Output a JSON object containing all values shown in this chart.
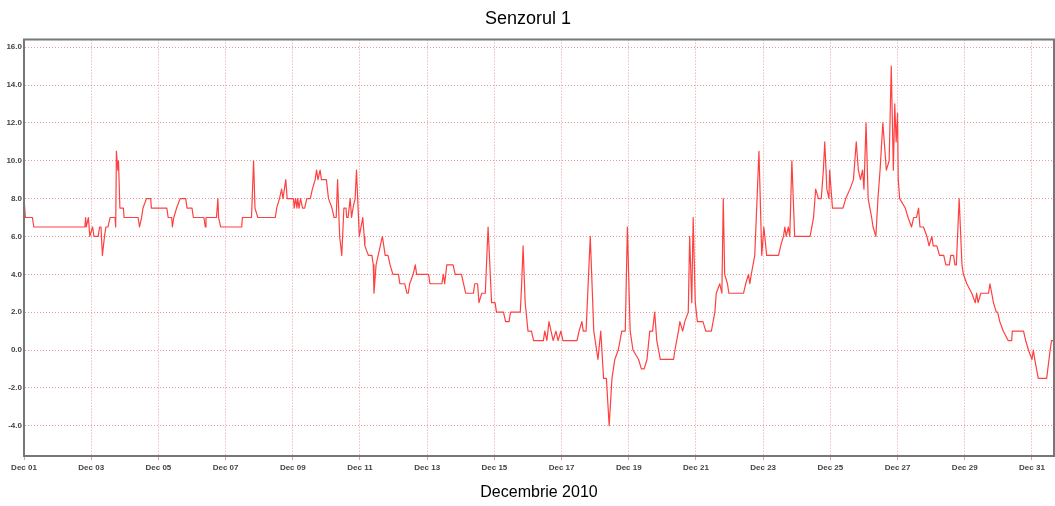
{
  "chart_data": {
    "type": "line",
    "title": "Senzorul 1",
    "xlabel": "Decembrie 2010",
    "xlim": [
      "2010-12-01",
      "2010-12-31T15:45"
    ],
    "xticks": [
      {
        "value": "2010-12-01",
        "label": "Dec 01"
      },
      {
        "value": "2010-12-03",
        "label": "Dec 03"
      },
      {
        "value": "2010-12-05",
        "label": "Dec 05"
      },
      {
        "value": "2010-12-07",
        "label": "Dec 07"
      },
      {
        "value": "2010-12-09",
        "label": "Dec 09"
      },
      {
        "value": "2010-12-11",
        "label": "Dec 11"
      },
      {
        "value": "2010-12-13",
        "label": "Dec 13"
      },
      {
        "value": "2010-12-15",
        "label": "Dec 15"
      },
      {
        "value": "2010-12-17",
        "label": "Dec 17"
      },
      {
        "value": "2010-12-19",
        "label": "Dec 19"
      },
      {
        "value": "2010-12-21",
        "label": "Dec 21"
      },
      {
        "value": "2010-12-23",
        "label": "Dec 23"
      },
      {
        "value": "2010-12-25",
        "label": "Dec 25"
      },
      {
        "value": "2010-12-27",
        "label": "Dec 27"
      },
      {
        "value": "2010-12-29",
        "label": "Dec 29"
      },
      {
        "value": "2010-12-31",
        "label": "Dec 31"
      }
    ],
    "ylim": [
      -5.6,
      16.4
    ],
    "yticks": [
      {
        "value": -4,
        "label": "-4.0"
      },
      {
        "value": -2,
        "label": "-2.0"
      },
      {
        "value": 0,
        "label": "0.0"
      },
      {
        "value": 2,
        "label": "2.0"
      },
      {
        "value": 4,
        "label": "4.0"
      },
      {
        "value": 6,
        "label": "6.0"
      },
      {
        "value": 8,
        "label": "8.0"
      },
      {
        "value": 10,
        "label": "10.0"
      },
      {
        "value": 12,
        "label": "12.0"
      },
      {
        "value": 14,
        "label": "14.0"
      },
      {
        "value": 16,
        "label": "16.0"
      }
    ],
    "grid": true,
    "legend": false,
    "marker": "none",
    "line_style": "solid",
    "series": [
      {
        "color": "#ff4040",
        "x": [
          "2010-12-01T00:00",
          "2010-12-01T01:00",
          "2010-12-01T06:00",
          "2010-12-01T07:00",
          "2010-12-02T19:30",
          "2010-12-02T20:00",
          "2010-12-02T20:30",
          "2010-12-02T22:00",
          "2010-12-02T23:00",
          "2010-12-03T01:00",
          "2010-12-03T02:00",
          "2010-12-03T05:00",
          "2010-12-03T06:00",
          "2010-12-03T07:00",
          "2010-12-03T08:00",
          "2010-12-03T09:30",
          "2010-12-03T10:30",
          "2010-12-03T12:00",
          "2010-12-03T13:30",
          "2010-12-03T17:00",
          "2010-12-03T17:30",
          "2010-12-03T18:00",
          "2010-12-03T19:00",
          "2010-12-03T19:30",
          "2010-12-03T20:30",
          "2010-12-03T23:00",
          "2010-12-03T23:30",
          "2010-12-04T09:30",
          "2010-12-04T10:30",
          "2010-12-04T12:00",
          "2010-12-04T13:00",
          "2010-12-04T15:30",
          "2010-12-04T18:30",
          "2010-12-04T19:00",
          "2010-12-05T06:00",
          "2010-12-05T07:00",
          "2010-12-05T09:30",
          "2010-12-05T10:00",
          "2010-12-05T11:00",
          "2010-12-05T13:00",
          "2010-12-05T15:30",
          "2010-12-05T19:30",
          "2010-12-05T20:30",
          "2010-12-06T00:00",
          "2010-12-06T01:00",
          "2010-12-06T08:30",
          "2010-12-06T09:30",
          "2010-12-06T10:00",
          "2010-12-06T17:30",
          "2010-12-06T18:30",
          "2010-12-06T19:00",
          "2010-12-06T20:30",
          "2010-12-07T11:30",
          "2010-12-07T12:00",
          "2010-12-07T18:30",
          "2010-12-07T20:00",
          "2010-12-07T21:00",
          "2010-12-07T23:00",
          "2010-12-08T11:30",
          "2010-12-08T12:30",
          "2010-12-08T14:30",
          "2010-12-08T16:00",
          "2010-12-08T17:00",
          "2010-12-08T19:00",
          "2010-12-08T20:00",
          "2010-12-09T00:30",
          "2010-12-09T01:00",
          "2010-12-09T02:00",
          "2010-12-09T03:00",
          "2010-12-09T03:30",
          "2010-12-09T04:30",
          "2010-12-09T05:30",
          "2010-12-09T07:00",
          "2010-12-09T08:30",
          "2010-12-09T10:00",
          "2010-12-09T12:30",
          "2010-12-09T14:00",
          "2010-12-09T16:00",
          "2010-12-09T17:00",
          "2010-12-09T18:00",
          "2010-12-09T19:30",
          "2010-12-09T20:30",
          "2010-12-10T00:00",
          "2010-12-10T01:30",
          "2010-12-10T04:00",
          "2010-12-10T05:30",
          "2010-12-10T07:00",
          "2010-12-10T08:00",
          "2010-12-10T09:30",
          "2010-12-10T11:00",
          "2010-12-10T12:30",
          "2010-12-10T14:00",
          "2010-12-10T14:30",
          "2010-12-10T15:30",
          "2010-12-10T17:00",
          "2010-12-10T18:00",
          "2010-12-10T19:00",
          "2010-12-10T20:30",
          "2010-12-10T21:30",
          "2010-12-10T23:30",
          "2010-12-11T02:00",
          "2010-12-11T03:00",
          "2010-12-11T03:30",
          "2010-12-11T06:00",
          "2010-12-11T08:30",
          "2010-12-11T09:30",
          "2010-12-11T10:00",
          "2010-12-11T11:30",
          "2010-12-11T13:00",
          "2010-12-11T14:30",
          "2010-12-11T16:00",
          "2010-12-11T18:00",
          "2010-12-11T20:00",
          "2010-12-11T21:30",
          "2010-12-11T23:30",
          "2010-12-12T03:30",
          "2010-12-12T04:30",
          "2010-12-12T08:00",
          "2010-12-12T09:30",
          "2010-12-12T10:30",
          "2010-12-12T11:30",
          "2010-12-12T14:00",
          "2010-12-12T15:30",
          "2010-12-12T16:30",
          "2010-12-13T01:00",
          "2010-12-13T02:00",
          "2010-12-13T10:30",
          "2010-12-13T11:30",
          "2010-12-13T12:30",
          "2010-12-13T14:00",
          "2010-12-13T18:30",
          "2010-12-13T20:00",
          "2010-12-14T00:30",
          "2010-12-14T02:00",
          "2010-12-14T03:30",
          "2010-12-14T09:00",
          "2010-12-14T10:00",
          "2010-12-14T12:00",
          "2010-12-14T13:00",
          "2010-12-14T15:00",
          "2010-12-14T17:30",
          "2010-12-14T19:30",
          "2010-12-14T22:00",
          "2010-12-15T00:30",
          "2010-12-15T01:30",
          "2010-12-15T06:30",
          "2010-12-15T08:00",
          "2010-12-15T10:30",
          "2010-12-15T11:30",
          "2010-12-15T18:30",
          "2010-12-15T19:30",
          "2010-12-15T20:30",
          "2010-12-15T22:00",
          "2010-12-16T00:00",
          "2010-12-16T02:30",
          "2010-12-16T04:00",
          "2010-12-16T11:00",
          "2010-12-16T12:00",
          "2010-12-16T13:30",
          "2010-12-16T15:00",
          "2010-12-16T18:00",
          "2010-12-16T20:00",
          "2010-12-16T21:30",
          "2010-12-16T23:30",
          "2010-12-17T01:00",
          "2010-12-17T11:00",
          "2010-12-17T12:30",
          "2010-12-17T14:30",
          "2010-12-17T15:30",
          "2010-12-17T17:30",
          "2010-12-17T20:30",
          "2010-12-17T23:00",
          "2010-12-18T01:00",
          "2010-12-18T02:00",
          "2010-12-18T04:00",
          "2010-12-18T06:00",
          "2010-12-18T08:00",
          "2010-12-18T10:00",
          "2010-12-18T12:00",
          "2010-12-18T14:00",
          "2010-12-18T16:30",
          "2010-12-18T19:00",
          "2010-12-18T21:30",
          "2010-12-18T23:00",
          "2010-12-19T01:00",
          "2010-12-19T03:00",
          "2010-12-19T07:00",
          "2010-12-19T09:00",
          "2010-12-19T11:00",
          "2010-12-19T13:00",
          "2010-12-19T15:00",
          "2010-12-19T17:00",
          "2010-12-19T18:30",
          "2010-12-19T20:00",
          "2010-12-19T22:30",
          "2010-12-20T08:00",
          "2010-12-20T09:00",
          "2010-12-20T11:30",
          "2010-12-20T12:30",
          "2010-12-20T14:30",
          "2010-12-20T16:00",
          "2010-12-20T18:30",
          "2010-12-20T19:30",
          "2010-12-20T21:00",
          "2010-12-20T22:00",
          "2010-12-20T23:30",
          "2010-12-21T01:00",
          "2010-12-21T05:00",
          "2010-12-21T07:00",
          "2010-12-21T11:00",
          "2010-12-21T13:30",
          "2010-12-21T14:30",
          "2010-12-21T17:00",
          "2010-12-21T18:30",
          "2010-12-21T19:30",
          "2010-12-21T20:30",
          "2010-12-21T22:30",
          "2010-12-21T23:30",
          "2010-12-22T10:00",
          "2010-12-22T11:30",
          "2010-12-22T13:30",
          "2010-12-22T14:30",
          "2010-12-22T15:30",
          "2010-12-22T18:00",
          "2010-12-22T21:00",
          "2010-12-22T23:00",
          "2010-12-23T00:30",
          "2010-12-23T02:30",
          "2010-12-23T11:00",
          "2010-12-23T12:30",
          "2010-12-23T14:30",
          "2010-12-23T15:30",
          "2010-12-23T16:30",
          "2010-12-23T18:00",
          "2010-12-23T19:00",
          "2010-12-23T20:30",
          "2010-12-23T22:30",
          "2010-12-24T09:30",
          "2010-12-24T12:00",
          "2010-12-24T13:30",
          "2010-12-24T15:30",
          "2010-12-24T17:30",
          "2010-12-24T19:00",
          "2010-12-24T20:00",
          "2010-12-24T21:30",
          "2010-12-24T23:00",
          "2010-12-24T23:30",
          "2010-12-25T01:30",
          "2010-12-25T09:00",
          "2010-12-25T11:00",
          "2010-12-25T14:00",
          "2010-12-25T16:30",
          "2010-12-25T18:30",
          "2010-12-25T20:00",
          "2010-12-25T21:30",
          "2010-12-25T23:00",
          "2010-12-26T00:00",
          "2010-12-26T01:30",
          "2010-12-26T03:00",
          "2010-12-26T05:30",
          "2010-12-26T06:30",
          "2010-12-26T08:30",
          "2010-12-26T10:00",
          "2010-12-26T11:30",
          "2010-12-26T13:30",
          "2010-12-26T15:00",
          "2010-12-26T16:00",
          "2010-12-26T18:00",
          "2010-12-26T19:30",
          "2010-12-26T21:00",
          "2010-12-26T22:00",
          "2010-12-26T23:00",
          "2010-12-27T00:00",
          "2010-12-27T00:30",
          "2010-12-27T01:30",
          "2010-12-27T05:30",
          "2010-12-27T07:30",
          "2010-12-27T10:00",
          "2010-12-27T11:30",
          "2010-12-27T13:30",
          "2010-12-27T15:00",
          "2010-12-27T16:00",
          "2010-12-27T18:30",
          "2010-12-27T21:00",
          "2010-12-27T22:30",
          "2010-12-28T00:30",
          "2010-12-28T01:30",
          "2010-12-28T04:00",
          "2010-12-28T06:00",
          "2010-12-28T09:00",
          "2010-12-28T10:30",
          "2010-12-28T13:00",
          "2010-12-28T14:00",
          "2010-12-28T16:00",
          "2010-12-28T17:00",
          "2010-12-28T18:00",
          "2010-12-28T20:00",
          "2010-12-28T22:00",
          "2010-12-28T23:00",
          "2010-12-29T01:30",
          "2010-12-29T05:00",
          "2010-12-29T07:30",
          "2010-12-29T08:30",
          "2010-12-29T09:30",
          "2010-12-29T11:30",
          "2010-12-29T17:00",
          "2010-12-29T18:00",
          "2010-12-29T20:30",
          "2010-12-29T22:30",
          "2010-12-29T23:30",
          "2010-12-30T01:00",
          "2010-12-30T03:30",
          "2010-12-30T07:00",
          "2010-12-30T09:30",
          "2010-12-30T10:00",
          "2010-12-30T18:00",
          "2010-12-30T19:30",
          "2010-12-30T21:30",
          "2010-12-31T00:00",
          "2010-12-31T01:00",
          "2010-12-31T02:00",
          "2010-12-31T04:30",
          "2010-12-31T10:30",
          "2010-12-31T13:00",
          "2010-12-31T14:00",
          "2010-12-31T15:00"
        ],
        "values": [
          8,
          7,
          7,
          6.5,
          6.5,
          7,
          6.5,
          7,
          6,
          6.5,
          6,
          6,
          6.5,
          6.5,
          5,
          6,
          6.5,
          6.5,
          7,
          7,
          6.5,
          10.5,
          9.5,
          10,
          7.5,
          7.5,
          7,
          7,
          6.5,
          7,
          7.5,
          8,
          8,
          7.5,
          7.5,
          7,
          7,
          6.5,
          7,
          7.5,
          8,
          8,
          7.5,
          7.5,
          7,
          7,
          6.5,
          7,
          7,
          8,
          7,
          6.5,
          6.5,
          7,
          7,
          10,
          7.5,
          7,
          7,
          7.5,
          8,
          8.5,
          8,
          9,
          8,
          8,
          7.5,
          8,
          7.5,
          8,
          7.5,
          8,
          7.5,
          7.5,
          8,
          8,
          8.5,
          9,
          9.5,
          9,
          9.5,
          9,
          9,
          8,
          7.5,
          7,
          7,
          9,
          6,
          5,
          7.5,
          7.5,
          7,
          7,
          8,
          7,
          7.5,
          8,
          9.5,
          6,
          7,
          6,
          5.5,
          5,
          5,
          4.5,
          3,
          4.5,
          5,
          5.5,
          6,
          5,
          5,
          4.5,
          4,
          4,
          3.5,
          3.5,
          3,
          3,
          3.5,
          4,
          4.5,
          4,
          4,
          3.5,
          3.5,
          4,
          3.5,
          4.5,
          4.5,
          4,
          4,
          3.5,
          3,
          3,
          3.5,
          3.5,
          2.5,
          3,
          3,
          6.5,
          2.5,
          2.5,
          2,
          2,
          1.5,
          1.5,
          2,
          2,
          3.5,
          5.5,
          2.5,
          1,
          1,
          0.5,
          0.5,
          1,
          0.5,
          1.5,
          0.5,
          1,
          0.5,
          1,
          0.5,
          0.5,
          1,
          1.5,
          1,
          1,
          6,
          1,
          0,
          -0.5,
          1,
          -1.5,
          -1.5,
          -4,
          -1.5,
          -0.5,
          0,
          1,
          1,
          6.5,
          1,
          0,
          -0.5,
          -1,
          -1,
          -0.5,
          1,
          1,
          2,
          0.5,
          -0.5,
          -0.5,
          0,
          1,
          1.5,
          1,
          1.5,
          2,
          6,
          2.5,
          7,
          2.5,
          1.5,
          1.5,
          1,
          1,
          2,
          3,
          3.5,
          3,
          8,
          4,
          3.5,
          3,
          3,
          3.5,
          4,
          3.5,
          4,
          5,
          10.5,
          5,
          6.5,
          5,
          5,
          5.5,
          6,
          6.5,
          6,
          6.5,
          6,
          10,
          6,
          6,
          7,
          8.5,
          8,
          8,
          9.5,
          11,
          8.5,
          8,
          9.5,
          7.5,
          7.5,
          8,
          8.5,
          9,
          11,
          9.5,
          9,
          9.5,
          8.5,
          12,
          8,
          7,
          6.5,
          6,
          8,
          9.5,
          12,
          10.5,
          9.5,
          10,
          15,
          9.5,
          13,
          11,
          12.5,
          9,
          8,
          7.5,
          7,
          6.5,
          7,
          7,
          7.5,
          6.5,
          6.5,
          6,
          5.5,
          6,
          5.5,
          5.5,
          5,
          5,
          4.5,
          4.5,
          5,
          5,
          4.5,
          4.5,
          8,
          4.5,
          4,
          3.5,
          3,
          2.5,
          3,
          2.5,
          3,
          3,
          3.5,
          2.5,
          2,
          2,
          1.5,
          1,
          0.5,
          0.5,
          1,
          1,
          0.5,
          0,
          -0.5,
          0,
          -0.5,
          -1.5,
          -1.5,
          0,
          0.5,
          0.5
        ]
      }
    ]
  }
}
